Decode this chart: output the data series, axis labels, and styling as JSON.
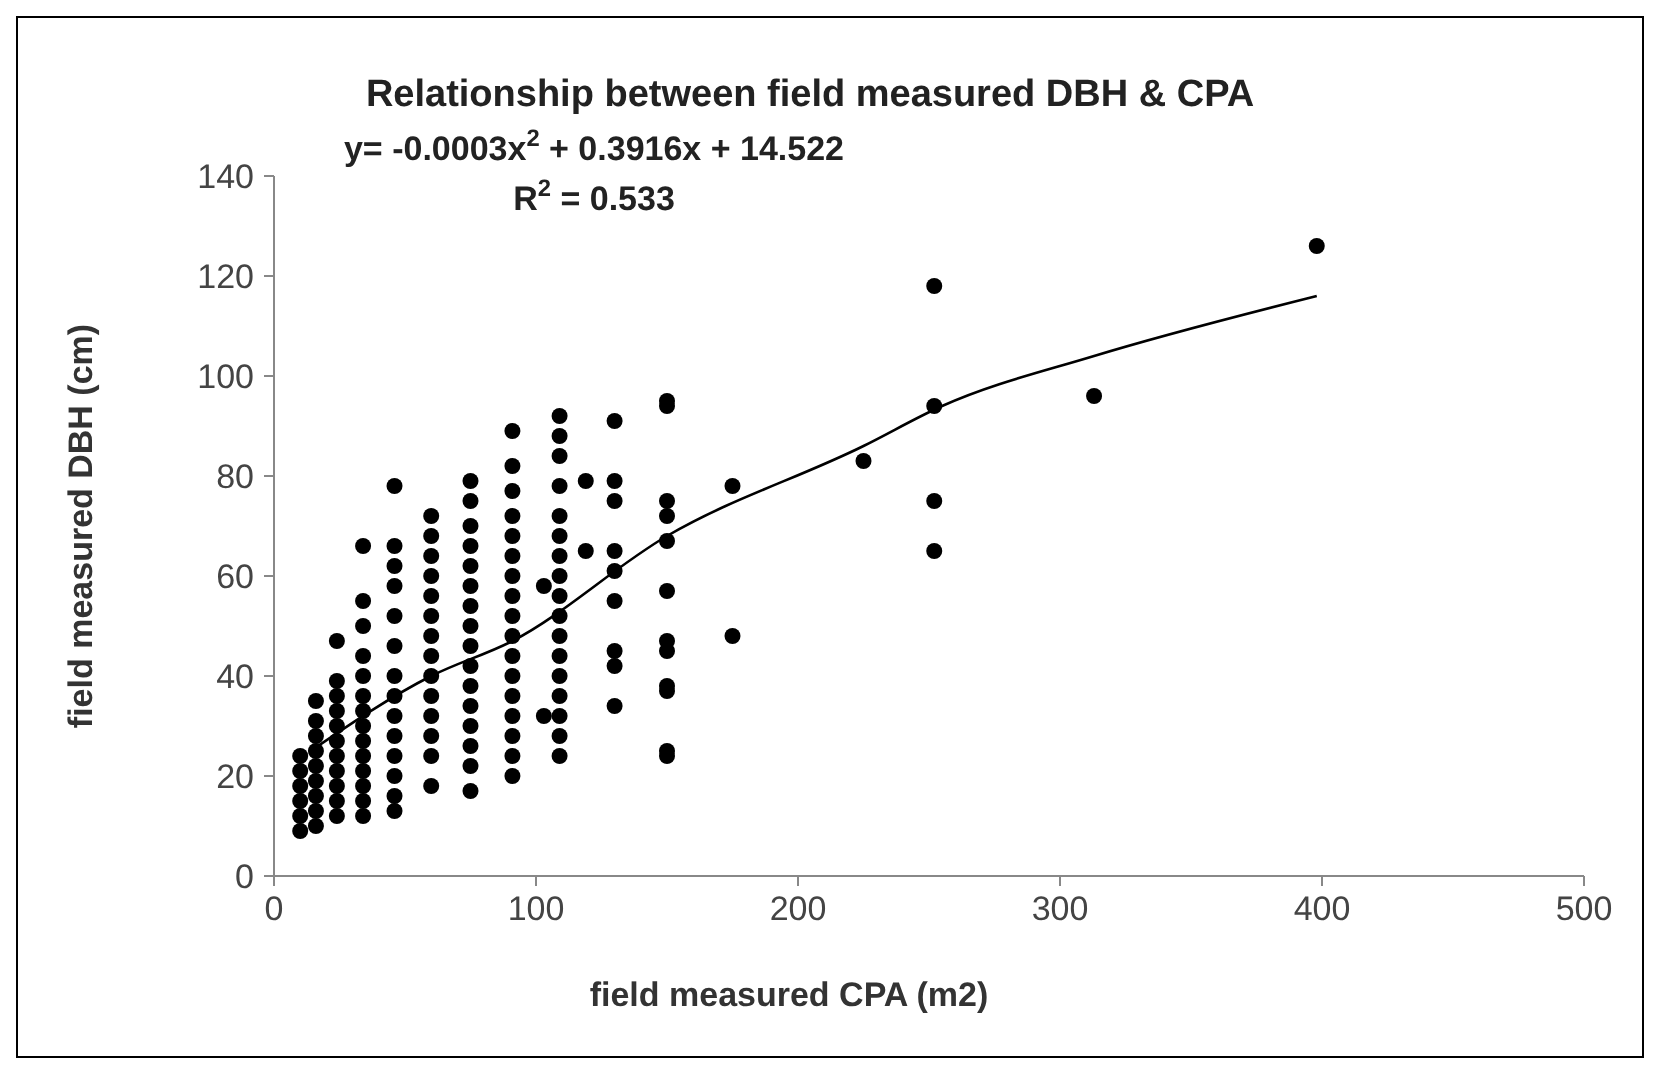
{
  "chart_data": {
    "type": "scatter",
    "title": "Relationship between field measured DBH & CPA",
    "xlabel": "field measured CPA (m2)",
    "ylabel": "field measured DBH (cm)",
    "annotations": [
      "y= -0.0003x$^{2}$ + 0.3916x + 14.522",
      "R$^{2}$ = 0.533"
    ],
    "xlim": [
      0,
      500
    ],
    "xticks": [
      0,
      100,
      200,
      300,
      400,
      500
    ],
    "ylim": [
      0,
      140
    ],
    "yticks": [
      0,
      20,
      40,
      60,
      80,
      100,
      120,
      140
    ],
    "grid": false,
    "marker": "circle",
    "series": [
      {
        "color": "#000000",
        "x": [
          10,
          10,
          10,
          10,
          10,
          10,
          16,
          16,
          16,
          16,
          16,
          16,
          16,
          16,
          16,
          24,
          24,
          24,
          24,
          24,
          24,
          24,
          24,
          24,
          24,
          24,
          34,
          34,
          34,
          34,
          34,
          34,
          34,
          34,
          34,
          34,
          34,
          34,
          34,
          34,
          46,
          46,
          46,
          46,
          46,
          46,
          46,
          46,
          46,
          46,
          46,
          46,
          46,
          46,
          60,
          60,
          60,
          60,
          60,
          60,
          60,
          60,
          60,
          60,
          60,
          60,
          60,
          60,
          75,
          75,
          75,
          75,
          75,
          75,
          75,
          75,
          75,
          75,
          75,
          75,
          75,
          75,
          75,
          75,
          91,
          91,
          91,
          91,
          91,
          91,
          91,
          91,
          91,
          91,
          91,
          91,
          91,
          91,
          91,
          91,
          91,
          103,
          103,
          109,
          109,
          109,
          109,
          109,
          109,
          109,
          109,
          109,
          109,
          109,
          109,
          109,
          109,
          109,
          109,
          109,
          119,
          119,
          130,
          130,
          130,
          130,
          130,
          130,
          130,
          130,
          130,
          150,
          150,
          150,
          150,
          150,
          150,
          150,
          150,
          150,
          150,
          150,
          150,
          175,
          175,
          225,
          252,
          252,
          252,
          252,
          313,
          398
        ],
        "values": [
          9,
          12,
          15,
          18,
          21,
          24,
          10,
          13,
          16,
          19,
          22,
          25,
          28,
          31,
          35,
          12,
          15,
          18,
          21,
          24,
          27,
          30,
          33,
          36,
          39,
          47,
          12,
          15,
          18,
          21,
          24,
          27,
          30,
          33,
          36,
          40,
          44,
          50,
          55,
          66,
          78,
          66,
          62,
          58,
          52,
          46,
          40,
          36,
          32,
          28,
          24,
          20,
          16,
          13,
          72,
          68,
          64,
          60,
          56,
          52,
          48,
          44,
          40,
          36,
          32,
          28,
          24,
          18,
          79,
          75,
          70,
          66,
          62,
          58,
          54,
          50,
          46,
          42,
          38,
          34,
          30,
          26,
          22,
          17,
          89,
          82,
          77,
          72,
          68,
          64,
          60,
          56,
          52,
          48,
          44,
          40,
          36,
          32,
          28,
          24,
          20,
          58,
          32,
          92,
          88,
          84,
          78,
          72,
          68,
          64,
          60,
          56,
          52,
          48,
          44,
          40,
          36,
          32,
          28,
          24,
          79,
          65,
          91,
          79,
          75,
          65,
          61,
          55,
          45,
          42,
          34,
          95,
          94,
          75,
          72,
          67,
          57,
          47,
          45,
          38,
          37,
          25,
          24,
          78,
          48,
          83,
          118,
          94,
          75,
          65,
          96,
          126
        ]
      },
      {
        "type": "line",
        "color": "#000000",
        "marker": "none",
        "x": [
          14,
          60,
          91,
          150,
          225,
          255,
          313,
          398
        ],
        "values": [
          25,
          40,
          47,
          68,
          86,
          94,
          104,
          116
        ]
      }
    ]
  }
}
